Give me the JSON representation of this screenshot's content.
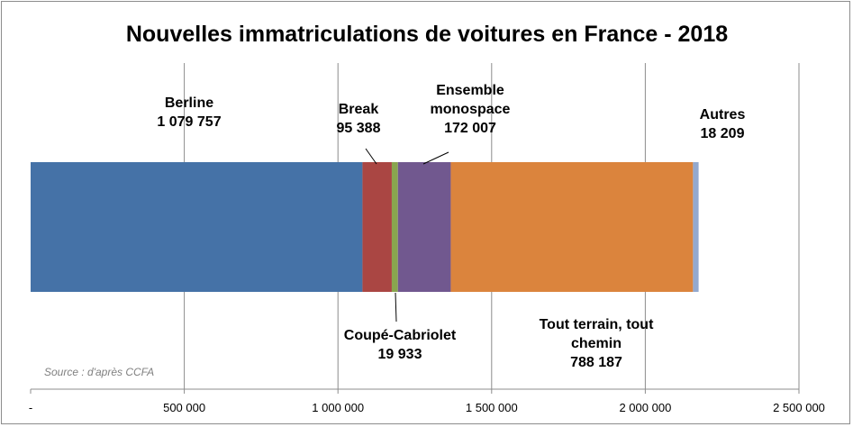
{
  "chart_data": {
    "type": "bar",
    "orientation": "horizontal",
    "stacked": true,
    "title": "Nouvelles immatriculations de voitures en France - 2018",
    "source": "Source : d'après CCFA",
    "xlim": [
      0,
      2500000
    ],
    "x_ticks": [
      0,
      500000,
      1000000,
      1500000,
      2000000,
      2500000
    ],
    "x_tick_labels": [
      "-",
      "500 000",
      "1 000 000",
      "1 500 000",
      "2 000 000",
      "2 500 000"
    ],
    "grid": true,
    "legend": "none",
    "series": [
      {
        "name": "Berline",
        "label_lines": [
          "Berline",
          "1 079 757"
        ],
        "value": 1079757,
        "color": "#4572A7"
      },
      {
        "name": "Break",
        "label_lines": [
          "Break",
          "95 388"
        ],
        "value": 95388,
        "color": "#AA4643"
      },
      {
        "name": "Coupé-Cabriolet",
        "label_lines": [
          "Coupé-Cabriolet",
          "19 933"
        ],
        "value": 19933,
        "color": "#89A54E"
      },
      {
        "name": "Ensemble monospace",
        "label_lines": [
          "Ensemble",
          "monospace",
          "172 007"
        ],
        "value": 172007,
        "color": "#71588F"
      },
      {
        "name": "Tout terrain, tout chemin",
        "label_lines": [
          "Tout terrain, tout",
          "chemin",
          "788 187"
        ],
        "value": 788187,
        "color": "#DB843D"
      },
      {
        "name": "Autres",
        "label_lines": [
          "Autres",
          "18 209"
        ],
        "value": 18209,
        "color": "#93A9CF"
      }
    ]
  }
}
